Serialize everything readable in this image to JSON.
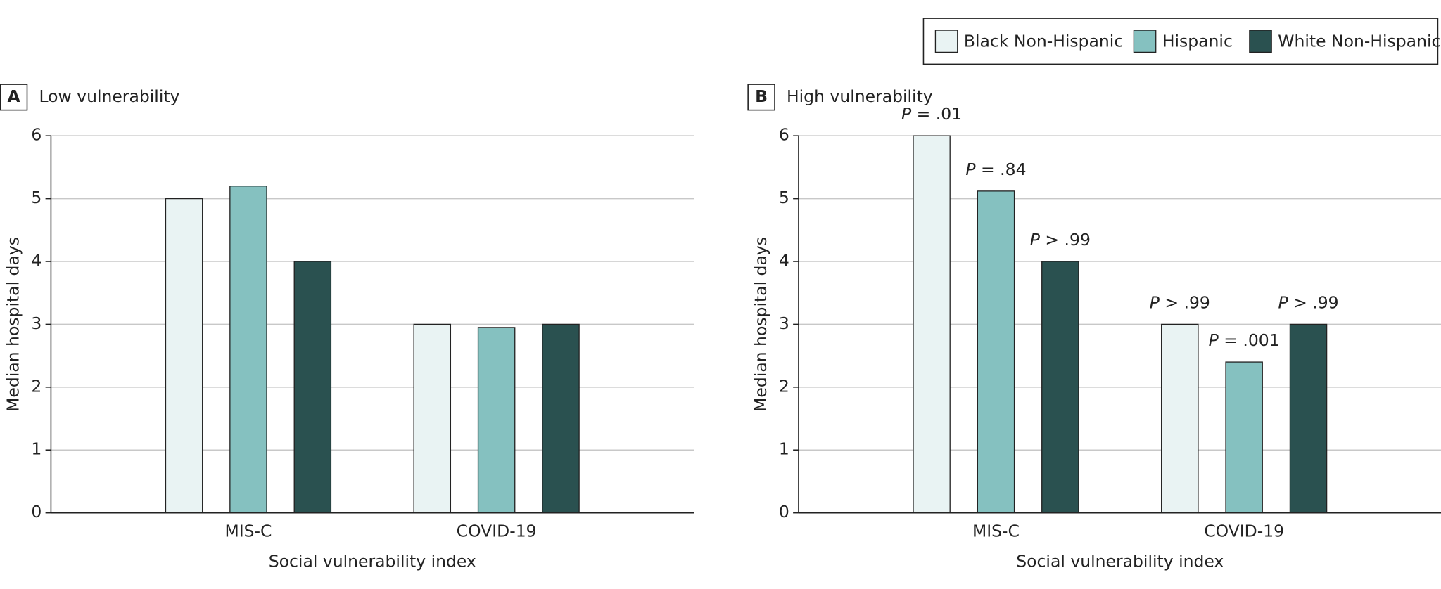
{
  "legend": [
    {
      "name": "Black Non-Hispanic",
      "color": "#e9f3f3"
    },
    {
      "name": "Hispanic",
      "color": "#85c1c0"
    },
    {
      "name": "White Non-Hispanic",
      "color": "#2a5150"
    }
  ],
  "chart_data": [
    {
      "type": "bar",
      "panel": "A",
      "title": "Low vulnerability",
      "x_label": "Social vulnerability index",
      "y_label": "Median hospital days",
      "categories": [
        "MIS-C",
        "COVID-19"
      ],
      "series": [
        {
          "values": [
            5,
            3
          ]
        },
        {
          "values": [
            5.2,
            2.95
          ]
        },
        {
          "values": [
            4,
            3
          ]
        }
      ],
      "ylim": [
        0,
        6
      ],
      "yticks": [
        0,
        1,
        2,
        3,
        4,
        5,
        6
      ],
      "grid": true
    },
    {
      "type": "bar",
      "panel": "B",
      "title": "High vulnerability",
      "x_label": "Social vulnerability index",
      "y_label": "Median hospital days",
      "categories": [
        "MIS-C",
        "COVID-19"
      ],
      "series": [
        {
          "values": [
            6,
            3
          ],
          "p_labels": [
            "P = .01",
            "P > .99"
          ]
        },
        {
          "values": [
            5.12,
            2.4
          ],
          "p_labels": [
            "P = .84",
            "P = .001"
          ]
        },
        {
          "values": [
            4,
            3
          ],
          "p_labels": [
            "P > .99",
            "P > .99"
          ]
        }
      ],
      "ylim": [
        0,
        6
      ],
      "yticks": [
        0,
        1,
        2,
        3,
        4,
        5,
        6
      ],
      "grid": true
    }
  ]
}
